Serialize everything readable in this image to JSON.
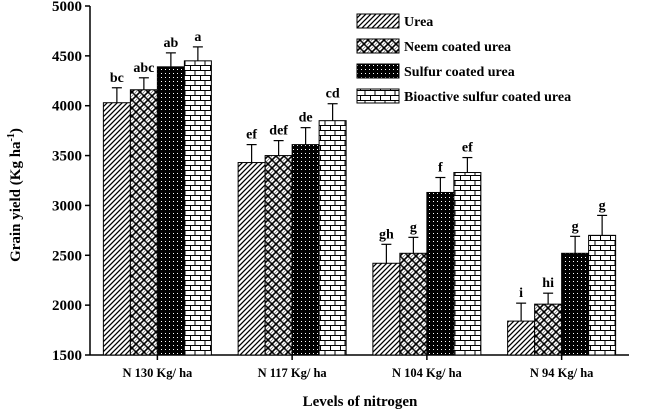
{
  "chart_data": {
    "type": "bar",
    "ylabel": "Grain yield (Kg ha",
    "ylabel_sup": "-1",
    "ylabel_close": ")",
    "xlabel": "Levels of nitrogen",
    "ylim": [
      1500,
      5000
    ],
    "yticks": [
      "1500",
      "2000",
      "2500",
      "3000",
      "3500",
      "4000",
      "4500",
      "5000"
    ],
    "grid": false,
    "legend_position": "top-right",
    "categories": [
      "N 130 Kg/ ha",
      "N 117 Kg/ ha",
      "N 104 Kg/ ha",
      "N 94 Kg/ ha"
    ],
    "series": [
      {
        "name": "Urea",
        "pattern": "diagonal",
        "values": [
          4030,
          3430,
          2420,
          1840
        ],
        "errors": [
          150,
          180,
          190,
          180
        ],
        "letters": [
          "bc",
          "ef",
          "gh",
          "i"
        ]
      },
      {
        "name": "Neem coated urea",
        "pattern": "crosshatch",
        "values": [
          4160,
          3500,
          2520,
          2010
        ],
        "errors": [
          120,
          150,
          160,
          110
        ],
        "letters": [
          "abc",
          "def",
          "g",
          "hi"
        ]
      },
      {
        "name": "Sulfur coated urea",
        "pattern": "dots",
        "values": [
          4390,
          3610,
          3130,
          2520
        ],
        "errors": [
          140,
          170,
          150,
          170
        ],
        "letters": [
          "ab",
          "de",
          "f",
          "g"
        ]
      },
      {
        "name": "Bioactive sulfur coated urea",
        "pattern": "brick",
        "values": [
          4450,
          3850,
          3330,
          2700
        ],
        "errors": [
          140,
          170,
          150,
          200
        ],
        "letters": [
          "a",
          "cd",
          "ef",
          "g"
        ]
      }
    ]
  }
}
